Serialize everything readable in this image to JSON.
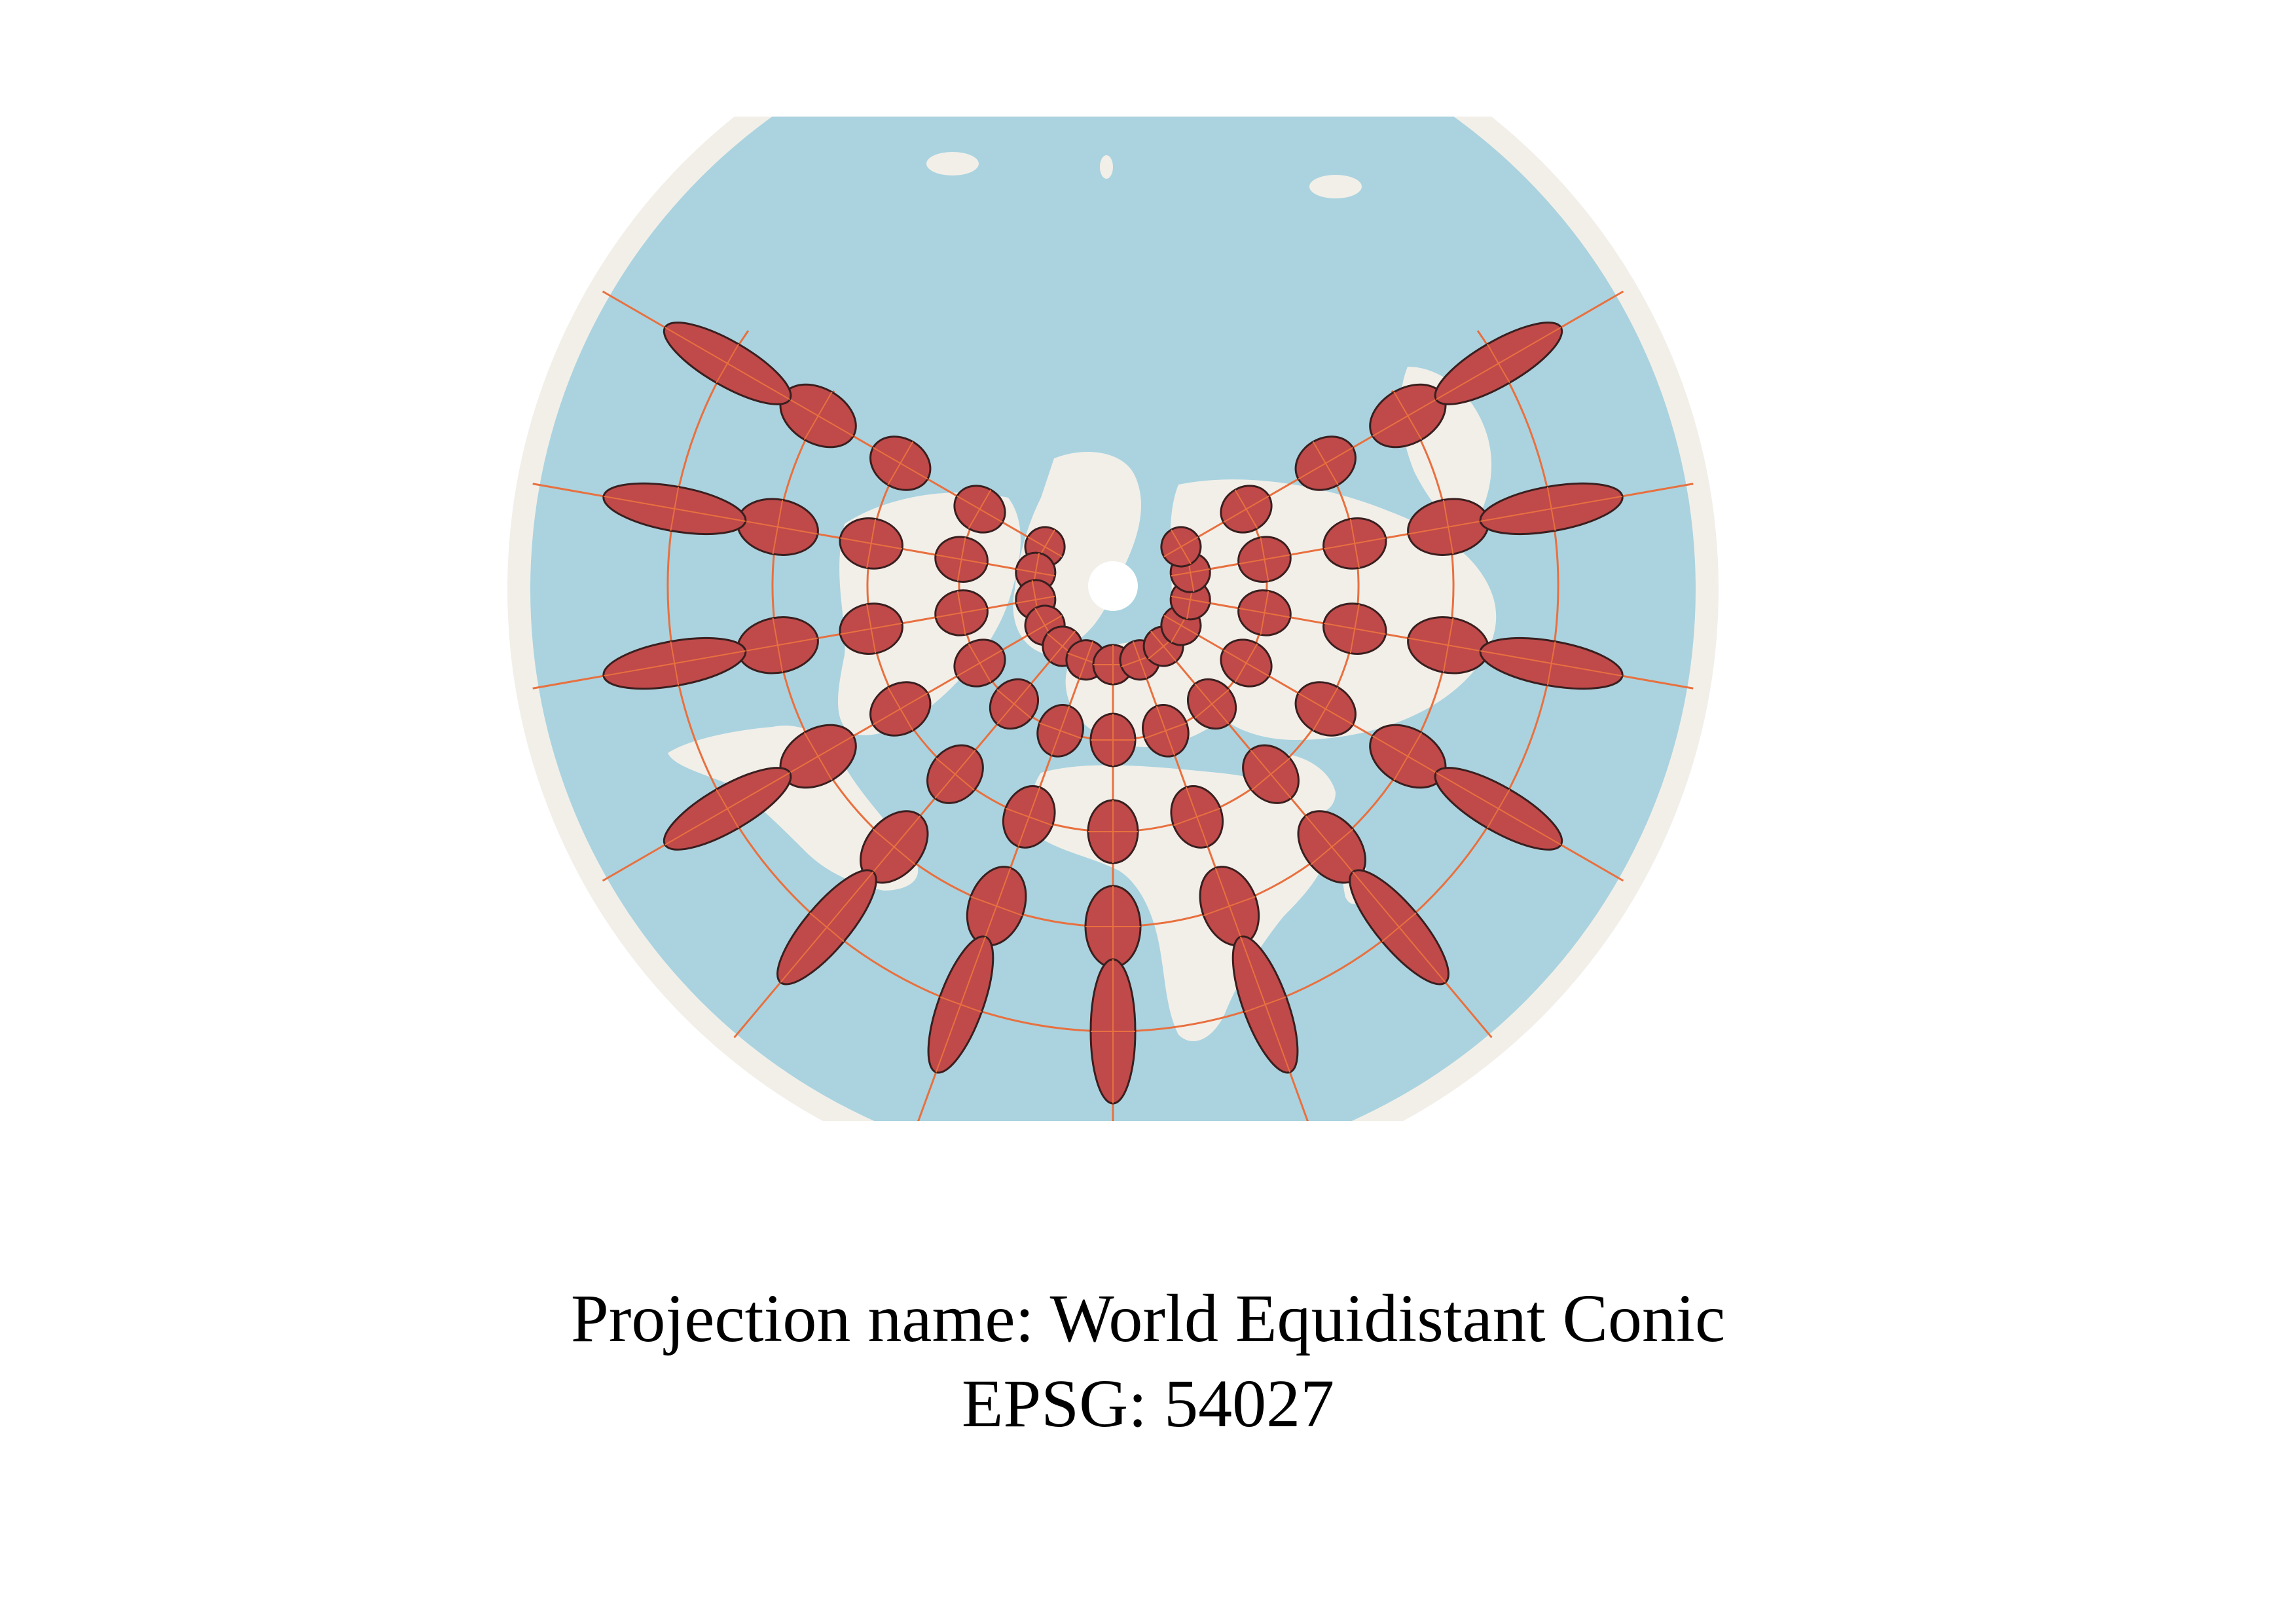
{
  "colors": {
    "ocean": "#aad3df",
    "land": "#f2efe9",
    "outer_rim": "#f2efe9",
    "ellipse_fill": "#c0494a",
    "ellipse_stroke": "#3a1f1f",
    "graticule": "#e8703f",
    "pole_hole": "#ffffff"
  },
  "icons": {
    "pole": "north-pole-hole-circle",
    "ellipses": "tissot-indicatrix-ellipse"
  },
  "caption": {
    "projection_line": "Projection name: World Equidistant Conic",
    "epsg_line": "EPSG: 54027"
  }
}
